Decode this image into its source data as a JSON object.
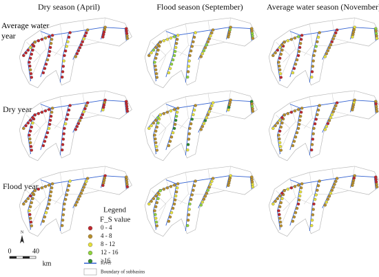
{
  "columns": [
    "Dry season (April)",
    "Flood season (September)",
    "Average water season (November)"
  ],
  "rows": [
    "Average water year",
    "Dry year",
    "Flood year"
  ],
  "legend": {
    "title": "Legend",
    "subtitle": "F_S value",
    "items": [
      {
        "label": "0 - 4",
        "color": "#c0272d"
      },
      {
        "label": "4 - 8",
        "color": "#b98f2b"
      },
      {
        "label": "8 - 12",
        "color": "#e6e03a"
      },
      {
        "label": "12 - 16",
        "color": "#8fd33c"
      },
      {
        "label": ">16",
        "color": "#2e8b2e"
      }
    ],
    "river": {
      "label": "River",
      "color": "#2f5fd0"
    },
    "boundary": {
      "label": "Boundary of subbasins"
    }
  },
  "north": "N",
  "scale": {
    "start": 0,
    "end": 40,
    "unit": "km"
  }
}
